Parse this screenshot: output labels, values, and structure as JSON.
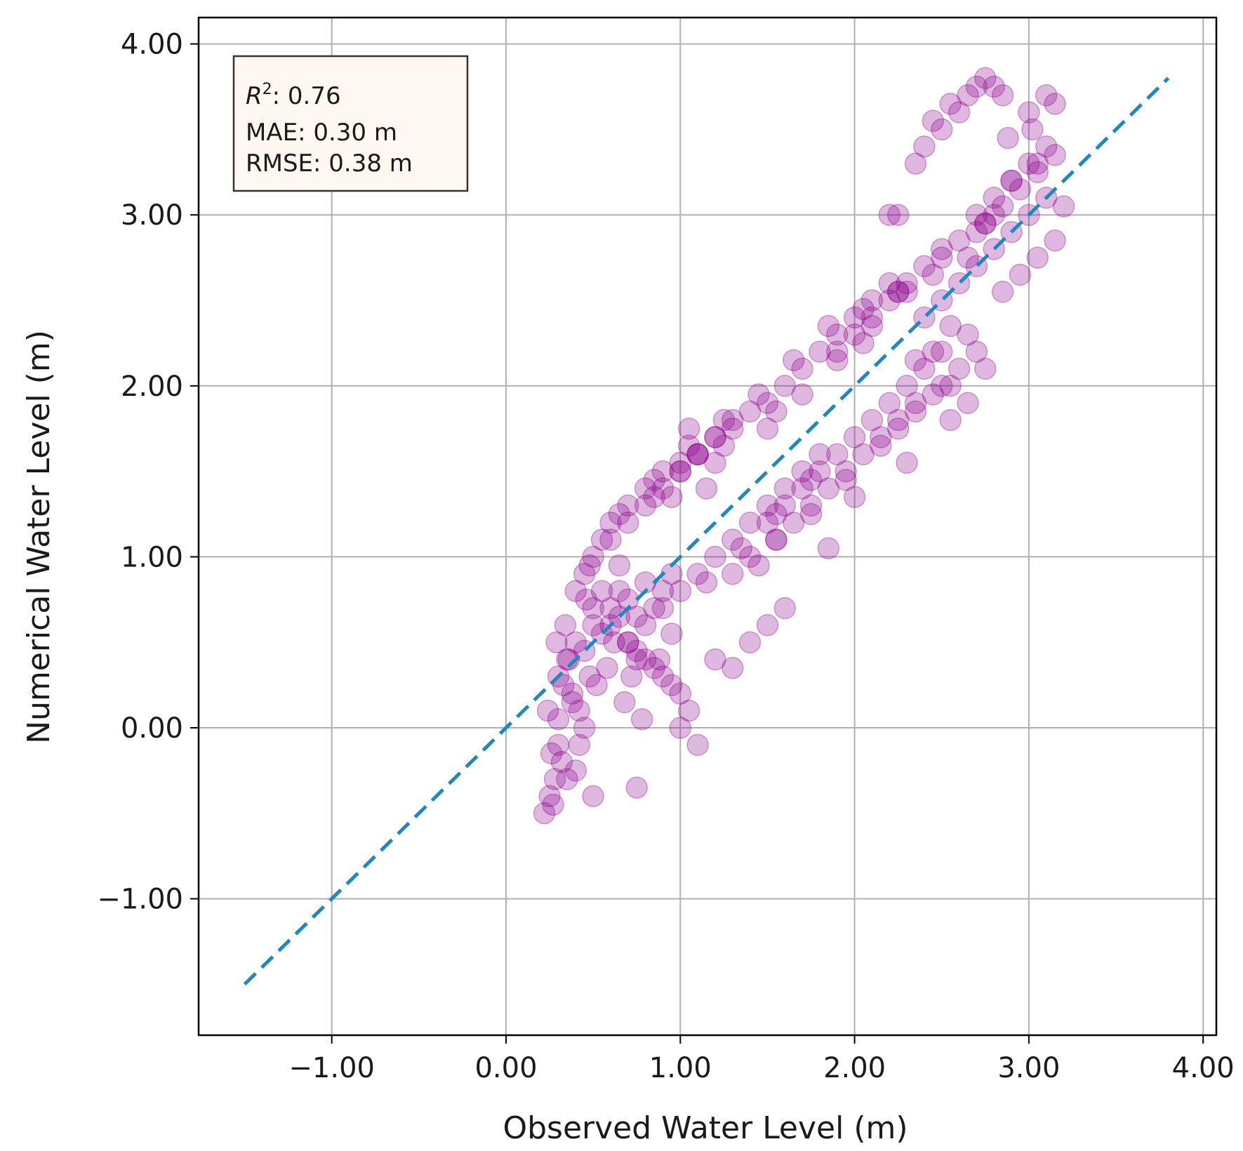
{
  "chart_data": {
    "type": "scatter",
    "xlabel": "Observed Water Level (m)",
    "ylabel": "Numerical Water Level (m)",
    "xlim": [
      -1.75,
      4.1
    ],
    "ylim": [
      -1.8,
      4.1
    ],
    "xticks": [
      -1,
      0,
      1,
      2,
      3,
      4
    ],
    "yticks": [
      -1,
      0,
      1,
      2,
      3,
      4
    ],
    "xtick_labels": [
      "−1.00",
      "0.00",
      "1.00",
      "2.00",
      "3.00",
      "4.00"
    ],
    "ytick_labels": [
      "−1.00",
      "0.00",
      "1.00",
      "2.00",
      "3.00",
      "4.00"
    ],
    "grid": true,
    "reference_line": {
      "x": [
        -1.5,
        3.8
      ],
      "y": [
        -1.5,
        3.8
      ],
      "style": "dashed",
      "color": "#1f87c2"
    },
    "stats": {
      "r2_symbol": "R",
      "r2_exponent": "2",
      "r2_value": ": 0.76",
      "mae": "MAE: 0.30 m",
      "rmse": "RMSE: 0.38 m"
    },
    "stats_placement": "top-left",
    "colors": {
      "points": "#8b008b",
      "reference_line": "#1f87c2",
      "stats_box_bg": "#fff8f0",
      "grid": "#b0b0b0"
    },
    "series": [
      {
        "x": [
          0.22,
          0.25,
          0.28,
          0.3,
          0.24,
          0.32,
          0.35,
          0.27,
          0.4,
          0.5,
          0.75,
          0.45,
          0.38,
          0.3,
          0.26,
          0.33,
          0.42,
          0.48,
          0.36,
          0.29,
          0.3,
          0.35,
          0.4,
          0.45,
          0.5,
          0.55,
          0.6,
          0.65,
          0.7,
          0.75,
          0.8,
          0.85,
          0.9,
          0.95,
          0.38,
          0.42,
          0.52,
          0.58,
          0.68,
          0.78,
          0.88,
          0.34,
          0.46,
          0.62,
          0.72,
          0.4,
          0.45,
          0.5,
          0.55,
          0.6,
          0.7,
          0.8,
          0.9,
          1.0,
          1.1,
          1.2,
          1.3,
          0.48,
          0.65,
          0.85,
          0.95,
          1.05,
          1.25,
          0.7,
          0.8,
          0.9,
          1.0,
          1.1,
          1.2,
          1.3,
          1.4,
          1.5,
          1.6,
          1.7,
          1.8,
          0.75,
          0.95,
          1.15,
          1.35,
          1.55,
          1.75,
          1.45,
          1.0,
          1.1,
          1.2,
          1.3,
          1.4,
          1.5,
          1.6,
          1.7,
          1.8,
          1.9,
          2.0,
          2.1,
          2.2,
          1.05,
          1.25,
          1.45,
          1.65,
          1.85,
          2.05,
          2.25,
          1.15,
          1.55,
          1.5,
          1.6,
          1.7,
          1.8,
          1.9,
          2.0,
          2.1,
          2.2,
          2.3,
          2.4,
          2.5,
          1.55,
          1.75,
          1.95,
          2.15,
          2.35,
          2.45,
          2.0,
          2.3,
          1.85,
          2.25,
          1.9,
          2.0,
          2.1,
          2.2,
          2.3,
          2.4,
          2.5,
          2.6,
          2.7,
          2.8,
          2.05,
          2.25,
          2.45,
          2.65,
          2.75,
          2.55,
          2.35,
          2.4,
          2.5,
          2.6,
          2.7,
          2.8,
          2.9,
          3.0,
          3.1,
          2.45,
          2.65,
          2.85,
          2.95,
          3.05,
          3.15,
          3.2,
          2.75,
          2.55,
          2.7,
          2.8,
          2.9,
          3.0,
          3.1,
          2.75,
          2.85,
          2.95,
          3.05,
          3.15,
          2.88,
          3.02,
          2.35,
          2.4,
          2.5,
          2.6,
          2.65,
          2.7,
          2.75,
          2.8,
          2.85,
          2.55,
          2.45,
          3.0,
          3.1,
          3.15,
          2.2,
          2.25,
          0.5,
          0.6,
          0.7,
          0.8,
          0.9,
          1.0,
          1.05,
          0.55,
          0.65,
          0.75,
          0.85,
          0.95,
          1.2,
          1.3,
          1.4,
          1.5,
          1.6,
          1.0,
          1.1,
          1.3,
          1.4,
          1.55,
          1.65,
          1.75,
          1.85,
          1.95,
          2.05,
          2.15,
          2.25,
          2.35,
          2.5,
          2.6,
          2.7,
          2.55,
          2.65,
          0.6,
          0.7,
          0.8,
          0.9,
          1.0,
          1.1,
          0.65,
          0.85,
          1.2,
          1.5,
          1.7,
          1.9,
          2.1,
          2.3,
          2.5,
          2.9,
          3.05
        ],
        "y": [
          -0.5,
          -0.4,
          -0.3,
          -0.1,
          0.1,
          -0.2,
          -0.3,
          -0.45,
          -0.25,
          -0.4,
          -0.35,
          0.0,
          0.15,
          0.05,
          -0.15,
          0.25,
          -0.1,
          0.3,
          0.4,
          0.5,
          0.3,
          0.4,
          0.5,
          0.45,
          0.6,
          0.55,
          0.7,
          0.8,
          0.75,
          0.65,
          0.85,
          0.7,
          0.8,
          0.9,
          0.2,
          0.1,
          0.25,
          0.35,
          0.15,
          0.05,
          0.4,
          0.6,
          0.75,
          0.5,
          0.3,
          0.8,
          0.9,
          1.0,
          1.1,
          1.2,
          1.3,
          1.4,
          1.5,
          1.55,
          1.6,
          1.7,
          1.75,
          0.95,
          1.25,
          1.45,
          1.35,
          1.65,
          1.8,
          0.5,
          0.6,
          0.7,
          0.8,
          0.9,
          1.0,
          1.1,
          1.2,
          1.3,
          1.4,
          1.5,
          1.6,
          0.4,
          0.55,
          0.85,
          1.05,
          1.25,
          1.45,
          0.95,
          1.5,
          1.6,
          1.7,
          1.8,
          1.85,
          1.9,
          2.0,
          2.1,
          2.2,
          2.3,
          2.4,
          2.5,
          2.6,
          1.75,
          1.65,
          1.95,
          2.15,
          2.35,
          2.25,
          2.55,
          1.4,
          1.85,
          1.2,
          1.3,
          1.4,
          1.5,
          1.6,
          1.7,
          1.8,
          1.9,
          2.0,
          2.1,
          2.2,
          1.1,
          1.25,
          1.45,
          1.65,
          1.85,
          1.95,
          1.35,
          1.55,
          1.05,
          1.75,
          2.2,
          2.3,
          2.4,
          2.5,
          2.6,
          2.7,
          2.8,
          2.85,
          2.9,
          3.0,
          2.45,
          2.55,
          2.65,
          2.75,
          2.95,
          2.35,
          2.15,
          2.4,
          2.5,
          2.6,
          2.7,
          2.8,
          2.9,
          3.0,
          3.1,
          2.2,
          2.3,
          2.55,
          2.65,
          2.75,
          2.85,
          3.05,
          2.1,
          2.0,
          3.0,
          3.1,
          3.2,
          3.3,
          3.4,
          2.95,
          3.05,
          3.15,
          3.25,
          3.35,
          3.45,
          3.5,
          3.3,
          3.4,
          3.5,
          3.6,
          3.7,
          3.75,
          3.8,
          3.75,
          3.7,
          3.65,
          3.55,
          3.6,
          3.7,
          3.65,
          3.0,
          3.0,
          0.7,
          0.6,
          0.5,
          0.4,
          0.3,
          0.2,
          0.1,
          0.8,
          0.65,
          0.45,
          0.35,
          0.25,
          0.4,
          0.35,
          0.5,
          0.6,
          0.7,
          0.0,
          -0.1,
          0.9,
          1.0,
          1.1,
          1.2,
          1.3,
          1.4,
          1.5,
          1.6,
          1.7,
          1.8,
          1.9,
          2.0,
          2.1,
          2.2,
          1.8,
          1.9,
          1.1,
          1.2,
          1.3,
          1.4,
          1.5,
          1.6,
          0.95,
          1.35,
          1.55,
          1.75,
          1.95,
          2.15,
          2.35,
          2.55,
          2.75,
          3.2,
          3.3
        ]
      }
    ]
  }
}
